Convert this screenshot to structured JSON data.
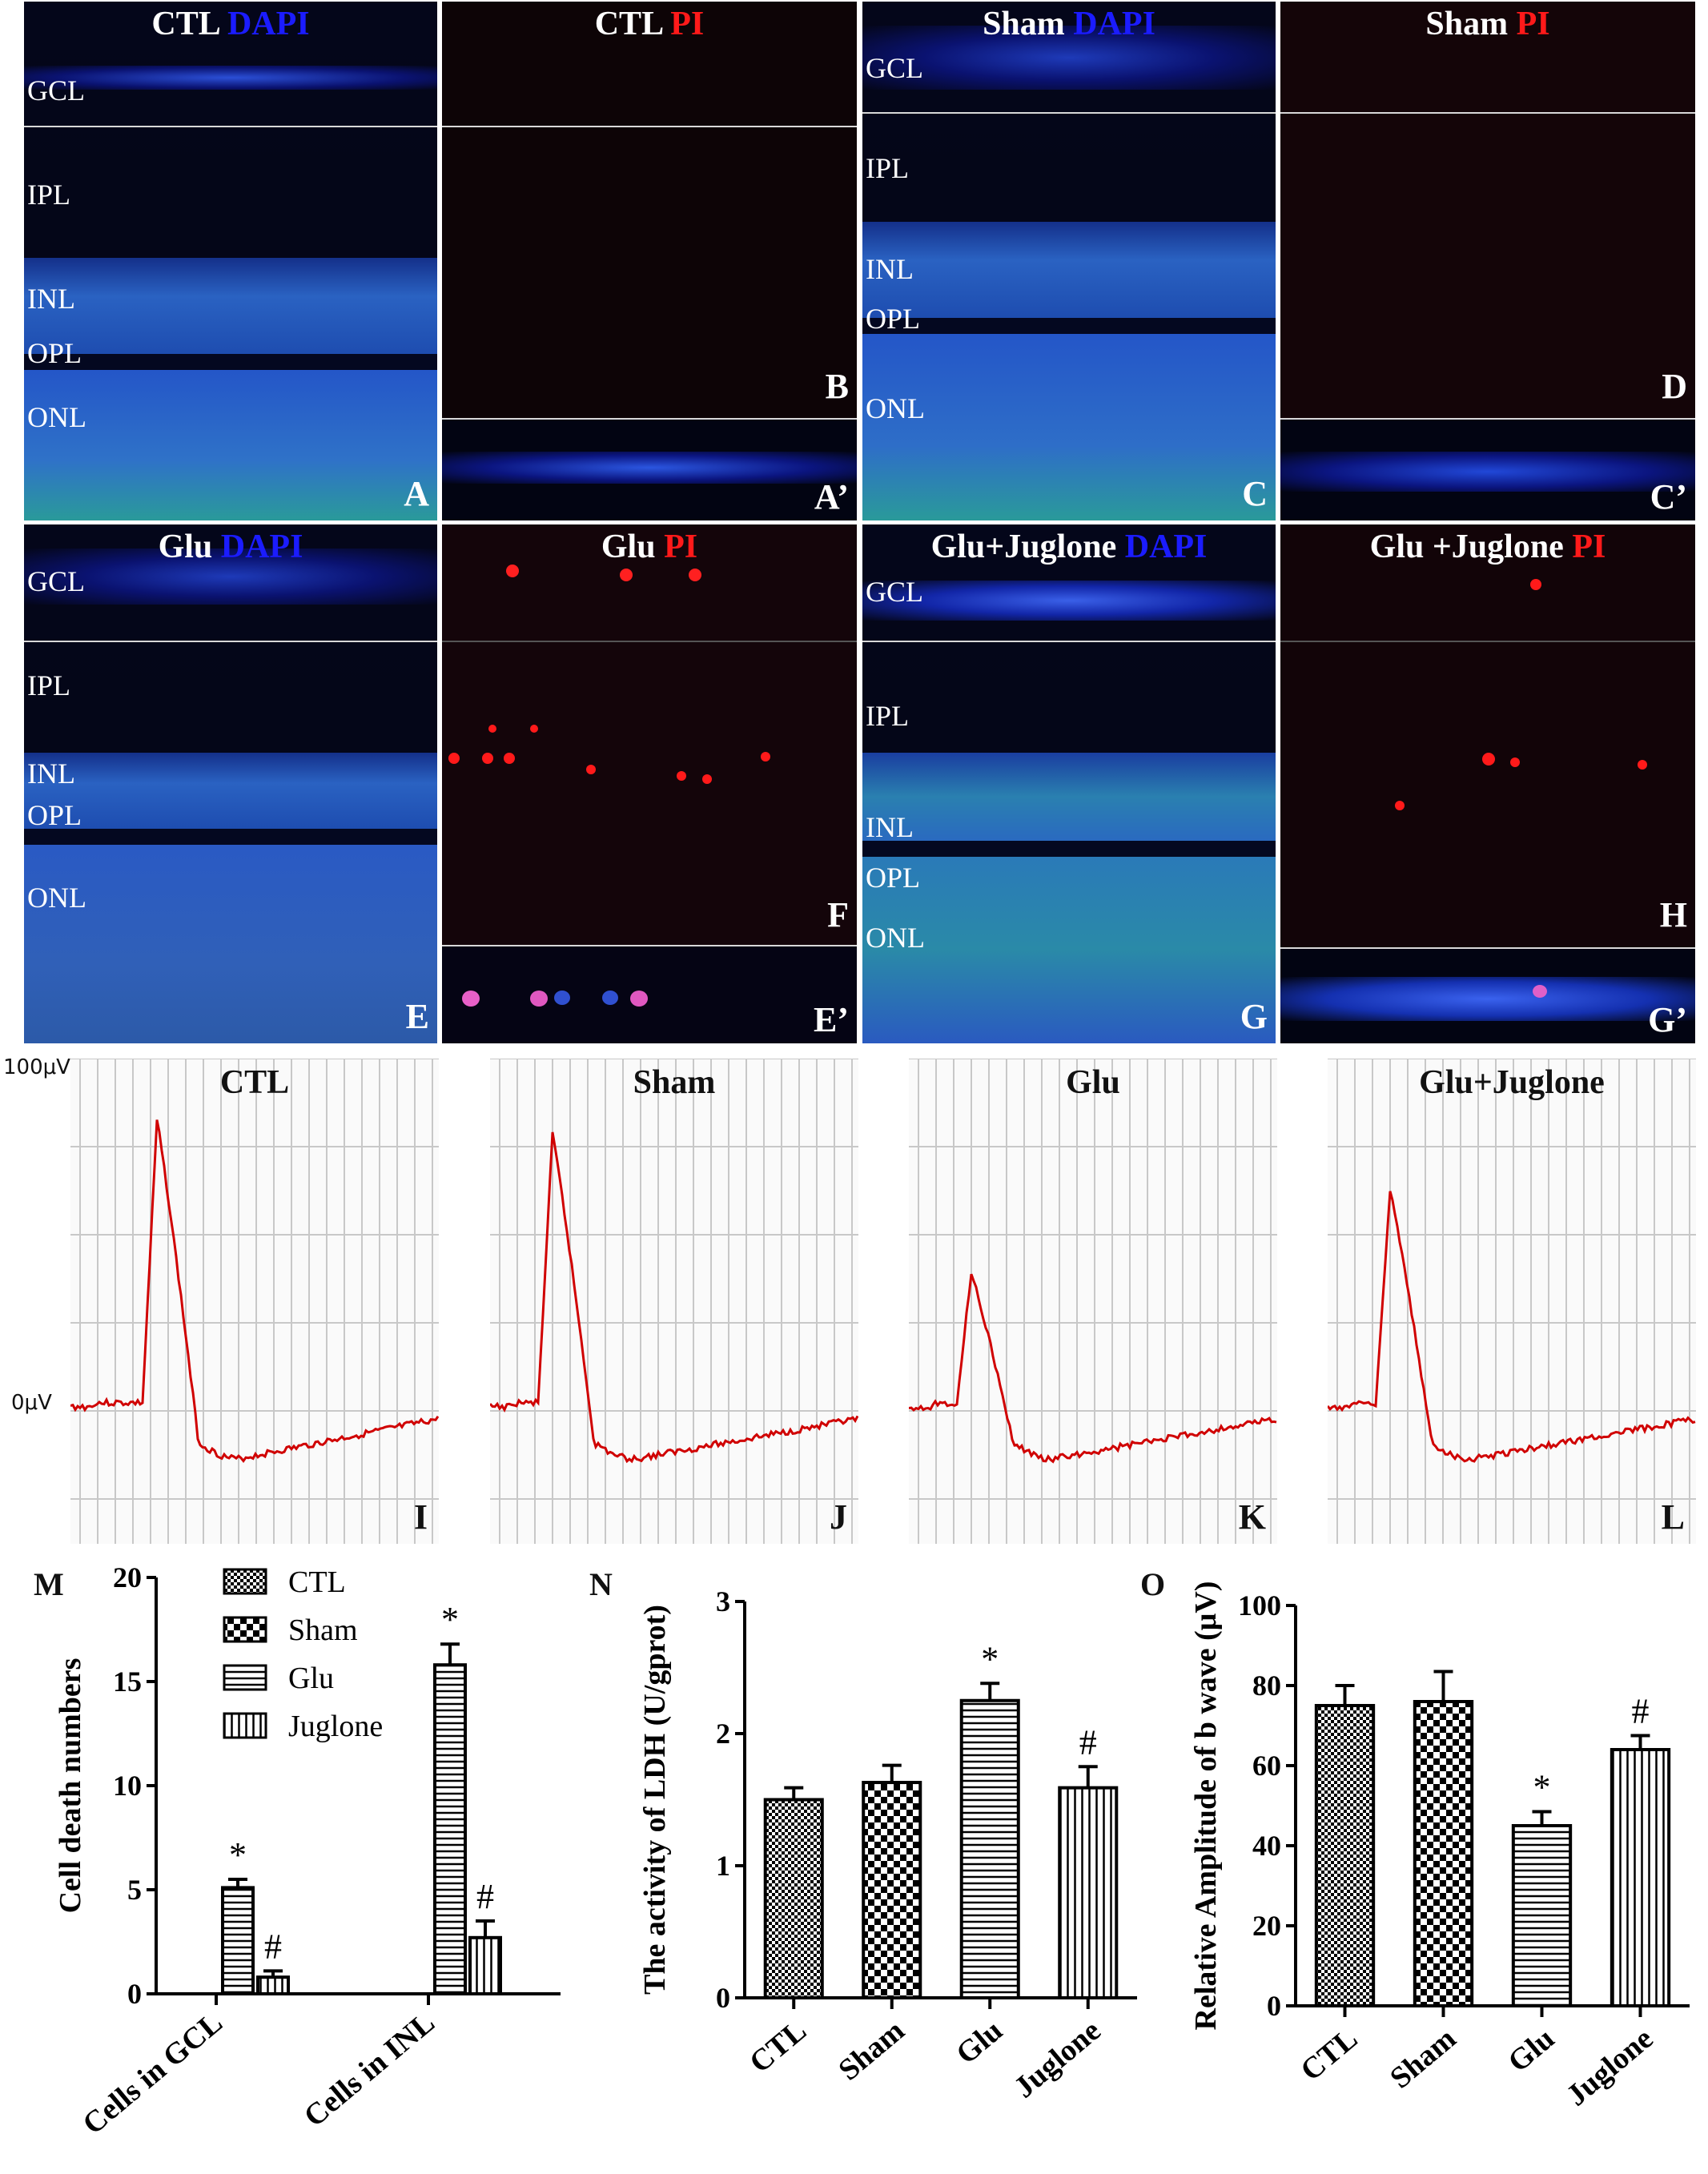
{
  "micro": [
    {
      "letter": "A",
      "group": "CTL",
      "stain": "DAPI",
      "layers": [
        "GCL",
        "IPL",
        "INL",
        "OPL",
        "ONL"
      ],
      "inset": "A’"
    },
    {
      "letter": "B",
      "group": "CTL",
      "stain": "PI"
    },
    {
      "letter": "C",
      "group": "Sham",
      "stain": "DAPI",
      "layers": [
        "GCL",
        "IPL",
        "INL",
        "OPL",
        "ONL"
      ],
      "inset": "C’"
    },
    {
      "letter": "D",
      "group": "Sham",
      "stain": "PI"
    },
    {
      "letter": "E",
      "group": "Glu",
      "stain": "DAPI",
      "layers": [
        "GCL",
        "IPL",
        "INL",
        "OPL",
        "ONL"
      ],
      "inset": "E’"
    },
    {
      "letter": "F",
      "group": "Glu",
      "stain": "PI"
    },
    {
      "letter": "G",
      "group": "Glu+Juglone",
      "stain": "DAPI",
      "layers": [
        "GCL",
        "IPL",
        "INL",
        "OPL",
        "ONL"
      ],
      "inset": "G’"
    },
    {
      "letter": "H",
      "group": "Glu +Juglone",
      "stain": "PI"
    }
  ],
  "erg": {
    "y_top_label": "100μV",
    "y_zero_label": "0μV",
    "panels": [
      {
        "letter": "I",
        "title": "CTL",
        "peak_uv": 80
      },
      {
        "letter": "J",
        "title": "Sham",
        "peak_uv": 76
      },
      {
        "letter": "K",
        "title": "Glu",
        "peak_uv": 37
      },
      {
        "letter": "L",
        "title": "Glu+Juglone",
        "peak_uv": 60
      }
    ]
  },
  "chart_data": [
    {
      "panel": "M",
      "type": "bar",
      "ylabel": "Cell death numbers",
      "ylim": [
        0,
        20
      ],
      "yticks": [
        "0",
        "5",
        "10",
        "15",
        "20"
      ],
      "categories": [
        "Cells in GCL",
        "Cells in INL"
      ],
      "series": [
        {
          "name": "CTL",
          "values": [
            0,
            0
          ],
          "errors": [
            0,
            0
          ],
          "marks": [
            "",
            ""
          ]
        },
        {
          "name": "Sham",
          "values": [
            0,
            0
          ],
          "errors": [
            0,
            0
          ],
          "marks": [
            "",
            ""
          ]
        },
        {
          "name": "Glu",
          "values": [
            5.1,
            15.8
          ],
          "errors": [
            0.4,
            1.0
          ],
          "marks": [
            "*",
            "*"
          ]
        },
        {
          "name": "Juglone",
          "values": [
            0.8,
            2.7
          ],
          "errors": [
            0.3,
            0.8
          ],
          "marks": [
            "#",
            "#"
          ]
        }
      ],
      "legend": [
        "CTL",
        "Sham",
        "Glu",
        "Juglone"
      ]
    },
    {
      "panel": "N",
      "type": "bar",
      "ylabel": "The activity of LDH (U/gprot)",
      "ylim": [
        0,
        3
      ],
      "yticks": [
        "0",
        "1",
        "2",
        "3"
      ],
      "categories": [
        "CTL",
        "Sham",
        "Glu",
        "Juglone"
      ],
      "values": [
        1.5,
        1.63,
        2.25,
        1.59
      ],
      "errors": [
        0.09,
        0.13,
        0.13,
        0.16
      ],
      "marks": [
        "",
        "",
        "*",
        "#"
      ]
    },
    {
      "panel": "O",
      "type": "bar",
      "ylabel": "Relative Amplitude of b wave (μV)",
      "ylim": [
        0,
        100
      ],
      "yticks": [
        "0",
        "20",
        "40",
        "60",
        "80",
        "100"
      ],
      "categories": [
        "CTL",
        "Sham",
        "Glu",
        "Juglone"
      ],
      "values": [
        75,
        76,
        45,
        64
      ],
      "errors": [
        5,
        7.5,
        3.5,
        3.5
      ],
      "marks": [
        "",
        "",
        "*",
        "#"
      ]
    }
  ]
}
